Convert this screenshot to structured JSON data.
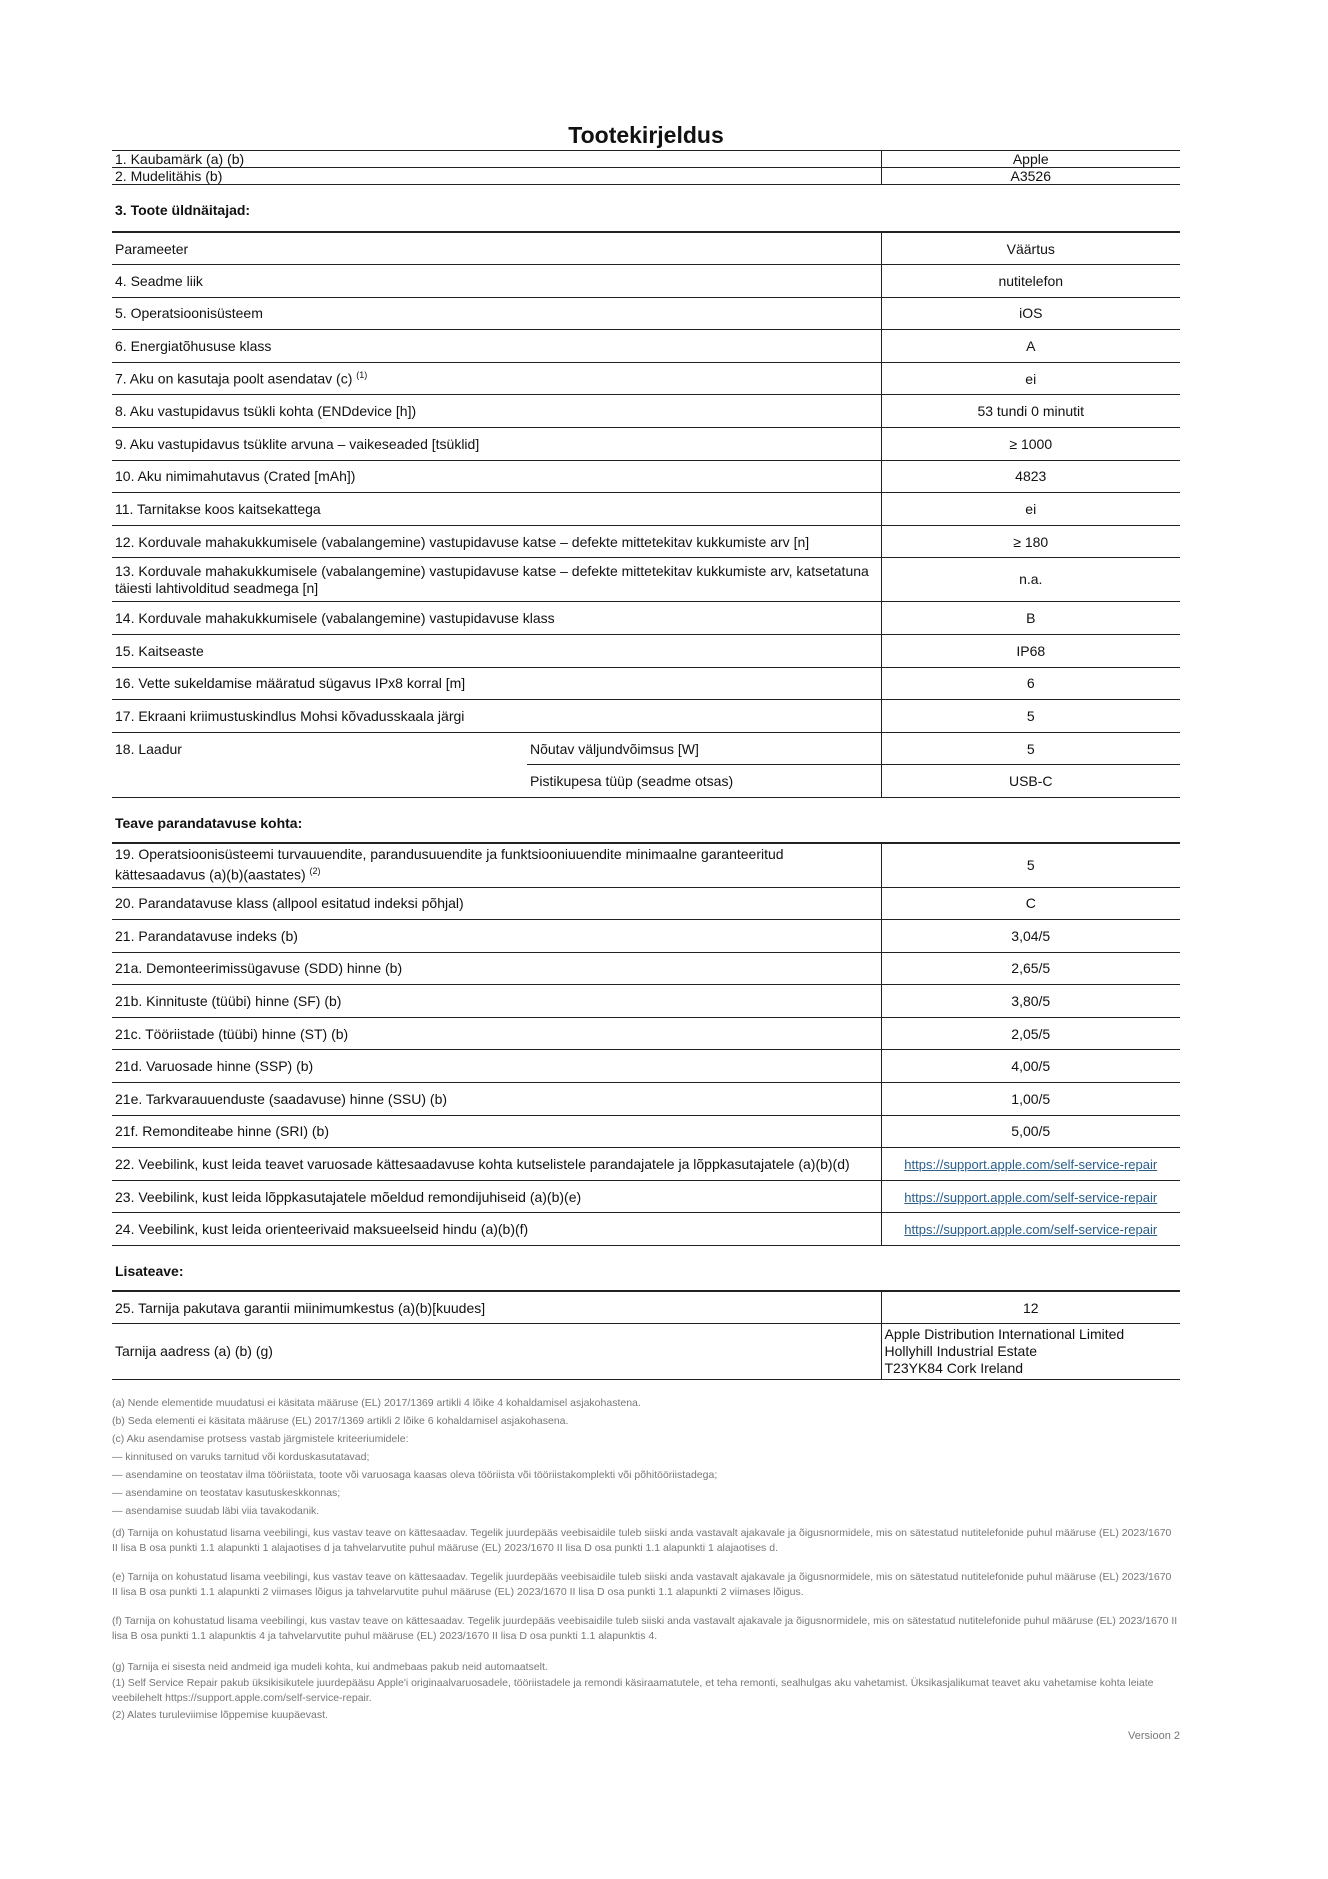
{
  "title": "Tootekirjeldus",
  "top_rows": [
    {
      "label": "1. Kaubamärk (a) (b)",
      "value": "Apple"
    },
    {
      "label": "2. Mudelitähis (b)",
      "value": "A3526"
    }
  ],
  "section1": {
    "title": "3. Toote üldnäitajad:",
    "header": {
      "label": "Parameeter",
      "value": "Väärtus"
    },
    "rows": [
      {
        "label": "4. Seadme liik",
        "value": "nutitelefon"
      },
      {
        "label": "5. Operatsioonisüsteem",
        "value": "iOS"
      },
      {
        "label": "6. Energiatõhususe klass",
        "value": "A"
      },
      {
        "label": "7. Aku on kasutaja poolt asendatav (c)",
        "sup": "(1)",
        "value": "ei"
      },
      {
        "label": "8. Aku vastupidavus tsükli kohta (ENDdevice [h])",
        "value": "53 tundi 0 minutit"
      },
      {
        "label": "9. Aku vastupidavus tsüklite arvuna – vaikeseaded [tsüklid]",
        "value": "≥ 1000"
      },
      {
        "label": "10. Aku nimimahutavus (Crated [mAh])",
        "value": "4823"
      },
      {
        "label": "11. Tarnitakse koos kaitsekattega",
        "value": "ei"
      },
      {
        "label": "12. Korduvale mahakukkumisele (vabalangemine) vastupidavuse katse – defekte mittetekitav kukkumiste arv [n]",
        "value": "≥ 180"
      },
      {
        "label": "13. Korduvale mahakukkumisele (vabalangemine) vastupidavuse katse – defekte mittetekitav kukkumiste arv, katsetatuna täiesti lahtivolditud seadmega [n]",
        "value": "n.a."
      },
      {
        "label": "14. Korduvale mahakukkumisele (vabalangemine) vastupidavuse klass",
        "value": "B"
      },
      {
        "label": "15. Kaitseaste",
        "value": "IP68"
      },
      {
        "label": "16. Vette sukeldamise määratud sügavus IPx8 korral [m]",
        "value": "6"
      },
      {
        "label": "17. Ekraani kriimustuskindlus Mohsi kõvadusskaala järgi",
        "value": "5"
      }
    ],
    "charger": {
      "label": "18. Laadur",
      "sub": [
        {
          "label": "Nõutav väljundvõimsus [W]",
          "value": "5"
        },
        {
          "label": "Pistikupesa tüüp (seadme otsas)",
          "value": "USB-C"
        }
      ]
    }
  },
  "section2": {
    "title": "Teave parandatavuse kohta:",
    "rows": [
      {
        "label": "19. Operatsioonisüsteemi turvauuendite, parandusuuendite ja funktsiooniuuendite minimaalne garanteeritud kättesaadavus (a)(b)(aastates)",
        "sup": "(2)",
        "value": "5"
      },
      {
        "label": "20. Parandatavuse klass (allpool esitatud indeksi põhjal)",
        "value": "C"
      },
      {
        "label": "21. Parandatavuse indeks (b)",
        "value": "3,04/5"
      },
      {
        "label": "21a. Demonteerimissügavuse (SDD) hinne (b)",
        "value": "2,65/5"
      },
      {
        "label": "21b. Kinnituste (tüübi) hinne (SF) (b)",
        "value": "3,80/5"
      },
      {
        "label": "21c. Tööriistade (tüübi) hinne (ST) (b)",
        "value": "2,05/5"
      },
      {
        "label": "21d. Varuosade hinne (SSP) (b)",
        "value": "4,00/5"
      },
      {
        "label": "21e. Tarkvarauuenduste (saadavuse) hinne (SSU) (b)",
        "value": "1,00/5"
      },
      {
        "label": "21f. Remonditeabe hinne (SRI) (b)",
        "value": "5,00/5"
      }
    ],
    "links": [
      {
        "label": "22. Veebilink, kust leida teavet varuosade kättesaadavuse kohta kutselistele parandajatele ja lõppkasutajatele (a)(b)(d)",
        "value": "https://support.apple.com/self-service-repair"
      },
      {
        "label": "23. Veebilink, kust leida lõppkasutajatele mõeldud remondijuhiseid (a)(b)(e)",
        "value": "https://support.apple.com/self-service-repair"
      },
      {
        "label": "24. Veebilink, kust leida orienteerivaid maksueelseid hindu (a)(b)(f)",
        "value": "https://support.apple.com/self-service-repair"
      }
    ]
  },
  "section3": {
    "title": "Lisateave:",
    "warranty": {
      "label": "25. Tarnija pakutava garantii miinimumkestus (a)(b)[kuudes]",
      "value": "12"
    },
    "address": {
      "label": "Tarnija aadress (a) (b) (g)",
      "lines": [
        "Apple Distribution International Limited",
        "Hollyhill Industrial Estate",
        "T23YK84 Cork Ireland"
      ]
    }
  },
  "notes": [
    "(a) Nende elementide muudatusi ei käsitata määruse (EL) 2017/1369 artikli 4 lõike 4 kohaldamisel asjakohastena.",
    "(b) Seda elementi ei käsitata määruse (EL) 2017/1369 artikli 2 lõike 6 kohaldamisel asjakohasena.",
    "(c) Aku asendamise protsess vastab järgmistele kriteeriumidele:",
    "— kinnitused on varuks tarnitud või korduskasutatavad;",
    "— asendamine on teostatav ilma tööriistata, toote või varuosaga kaasas oleva tööriista või tööriistakomplekti või põhitööriistadega;",
    "— asendamine on teostatav kasutuskeskkonnas;",
    "— asendamise suudab läbi viia tavakodanik.",
    "(d) Tarnija on kohustatud lisama veebilingi, kus vastav teave on kättesaadav. Tegelik juurdepääs veebisaidile tuleb siiski anda vastavalt ajakavale ja õigusnormidele, mis on sätestatud nutitelefonide puhul määruse (EL) 2023/1670 II lisa B osa punkti 1.1 alapunkti 1 alajaotises d ja tahvelarvutite puhul määruse (EL) 2023/1670 II lisa D osa punkti 1.1 alapunkti 1 alajaotises d.",
    "(e) Tarnija on kohustatud lisama veebilingi, kus vastav teave on kättesaadav. Tegelik juurdepääs veebisaidile tuleb siiski anda vastavalt ajakavale ja õigusnormidele, mis on sätestatud nutitelefonide puhul määruse (EL) 2023/1670 II lisa B osa punkti 1.1 alapunkti 2 viimases lõigus ja tahvelarvutite puhul määruse (EL) 2023/1670 II lisa D osa punkti 1.1 alapunkti 2 viimases lõigus.",
    "(f) Tarnija on kohustatud lisama veebilingi, kus vastav teave on kättesaadav. Tegelik juurdepääs veebisaidile tuleb siiski anda vastavalt ajakavale ja õigusnormidele, mis on sätestatud nutitelefonide puhul määruse (EL) 2023/1670 II lisa B osa punkti 1.1 alapunktis 4 ja tahvelarvutite puhul määruse (EL) 2023/1670 II lisa D osa punkti 1.1 alapunktis 4.",
    "(g) Tarnija ei sisesta neid andmeid iga mudeli kohta, kui andmebaas pakub neid automaatselt.",
    "(1) Self Service Repair pakub üksikisikutele juurdepääsu Apple'i originaalvaruosadele, tööriistadele ja remondi käsiraamatutele, et teha remonti, sealhulgas aku vahetamist. Üksikasjalikumat teavet aku vahetamise kohta leiate veebilehelt https://support.apple.com/self-service-repair.",
    "(2) Alates turuleviimise lõppemise kuupäevast."
  ],
  "version": "Versioon 2"
}
